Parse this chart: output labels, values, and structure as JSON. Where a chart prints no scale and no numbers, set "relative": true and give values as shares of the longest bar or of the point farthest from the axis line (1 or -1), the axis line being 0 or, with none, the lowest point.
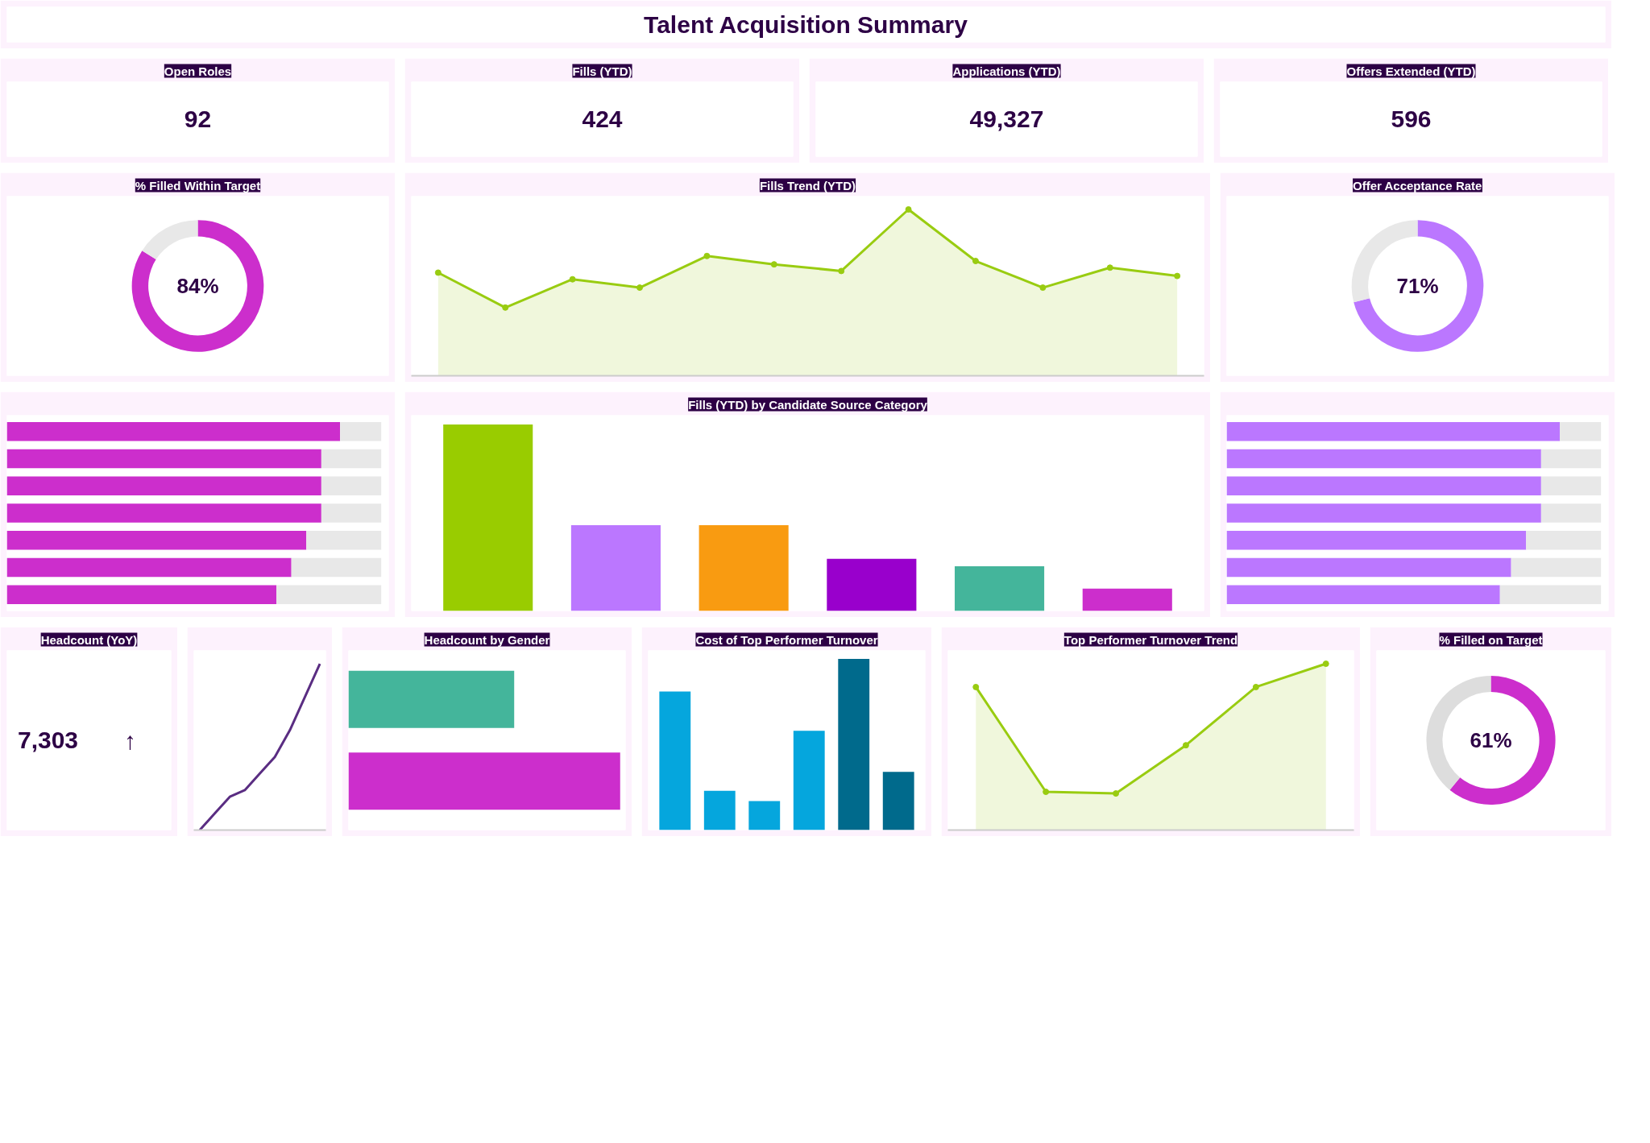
{
  "chart_data": [
    {
      "type": "other",
      "title": "Talent Acquisition Summary"
    },
    {
      "type": "other",
      "title": "Open Roles",
      "annotations": [
        "92"
      ]
    },
    {
      "type": "other",
      "title": "Fills (YTD)",
      "annotations": [
        "424"
      ]
    },
    {
      "type": "other",
      "title": "Applications (YTD)",
      "annotations": [
        "49,327"
      ]
    },
    {
      "type": "other",
      "title": "Offers Extended (YTD)",
      "annotations": [
        "596"
      ]
    },
    {
      "type": "donut",
      "title": "% Filled Within Target",
      "categories": [
        null,
        null
      ],
      "values": [
        84,
        16
      ],
      "colors": [
        "#cc2ecc",
        "#e8e8e8"
      ],
      "annotations": [
        "84%"
      ]
    },
    {
      "type": "area",
      "title": "Fills Trend (YTD)",
      "relative": true,
      "marker": "circle",
      "categories": [
        null,
        null,
        null,
        null,
        null,
        null,
        null,
        null,
        null,
        null,
        null,
        null
      ],
      "series": [
        {
          "color": "#99cc11",
          "values": [
            0.62,
            0.41,
            0.58,
            0.53,
            0.72,
            0.67,
            0.63,
            1,
            0.69,
            0.53,
            0.65,
            0.6
          ]
        }
      ]
    },
    {
      "type": "donut",
      "title": "Offer Acceptance Rate",
      "categories": [
        null,
        null
      ],
      "values": [
        71,
        29
      ],
      "colors": [
        "#bb77ff",
        "#e8e8e8"
      ],
      "annotations": [
        "71%"
      ]
    },
    {
      "type": "bar",
      "orientation": "horizontal",
      "stacked": true,
      "relative": true,
      "categories": [
        null,
        null,
        null,
        null,
        null,
        null,
        null
      ],
      "series": [
        {
          "color": "#cc2ecc",
          "values": [
            0.89,
            0.84,
            0.84,
            0.84,
            0.8,
            0.76,
            0.72
          ]
        },
        {
          "color": "#e8e8e8",
          "values": [
            0.11,
            0.16,
            0.16,
            0.16,
            0.2,
            0.24,
            0.28
          ]
        }
      ]
    },
    {
      "type": "bar",
      "title": "Fills (YTD) by Candidate Source Category",
      "relative": true,
      "categories": [
        null,
        null,
        null,
        null,
        null,
        null
      ],
      "values": [
        1,
        0.46,
        0.46,
        0.28,
        0.24,
        0.12
      ],
      "colors": [
        "#99cc00",
        "#bb77ff",
        "#f99b11",
        "#9900cc",
        "#44b59b",
        "#cc2ecc"
      ]
    },
    {
      "type": "bar",
      "orientation": "horizontal",
      "stacked": true,
      "relative": true,
      "categories": [
        null,
        null,
        null,
        null,
        null,
        null,
        null
      ],
      "series": [
        {
          "color": "#bb77ff",
          "values": [
            0.89,
            0.84,
            0.84,
            0.84,
            0.8,
            0.76,
            0.73
          ]
        },
        {
          "color": "#e8e8e8",
          "values": [
            0.11,
            0.16,
            0.16,
            0.16,
            0.2,
            0.24,
            0.27
          ]
        }
      ]
    },
    {
      "type": "other",
      "title": "Headcount (YoY)",
      "annotations": [
        "7,303",
        "↑"
      ]
    },
    {
      "type": "line",
      "relative": true,
      "categories": [
        null,
        null,
        null,
        null,
        null,
        null,
        null,
        null,
        null
      ],
      "series": [
        {
          "color": "#5a2d82",
          "values": [
            0,
            0.1,
            0.2,
            0.24,
            0.34,
            0.44,
            0.6,
            0.8,
            1
          ]
        }
      ]
    },
    {
      "type": "bar",
      "title": "Headcount by Gender",
      "orientation": "horizontal",
      "relative": true,
      "categories": [
        null,
        null
      ],
      "values": [
        0.61,
        1
      ],
      "colors": [
        "#44b59b",
        "#cc2ecc"
      ]
    },
    {
      "type": "bar",
      "title": "Cost of Top Performer Turnover",
      "relative": true,
      "categories": [
        null,
        null,
        null,
        null,
        null,
        null
      ],
      "values": [
        0.81,
        0.23,
        0.17,
        0.58,
        1,
        0.34
      ],
      "colors": [
        "#05a6dd",
        "#05a6dd",
        "#05a6dd",
        "#05a6dd",
        "#006a8c",
        "#006a8c"
      ]
    },
    {
      "type": "area",
      "title": "Top Performer Turnover Trend",
      "relative": true,
      "marker": "circle",
      "categories": [
        null,
        null,
        null,
        null,
        null,
        null
      ],
      "series": [
        {
          "color": "#99cc11",
          "values": [
            0.86,
            0.23,
            0.22,
            0.51,
            0.86,
            1
          ]
        }
      ]
    },
    {
      "type": "donut",
      "title": "% Filled on Target",
      "categories": [
        null,
        null
      ],
      "values": [
        61,
        39
      ],
      "colors": [
        "#cc2ecc",
        "#dddddd"
      ],
      "annotations": [
        "61%"
      ]
    }
  ]
}
